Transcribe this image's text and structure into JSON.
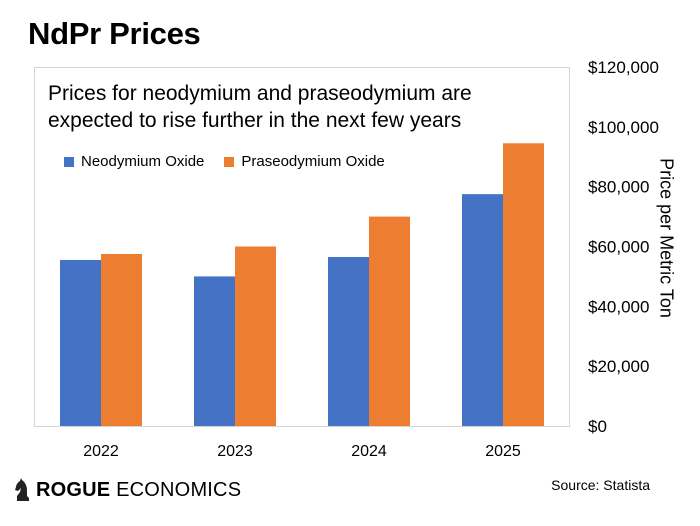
{
  "page": {
    "headline": "NdPr Prices",
    "source": "Source: Statista",
    "logo": {
      "bold": "ROGUE",
      "regular": " ECONOMICS",
      "icon": "knight-chess-icon"
    }
  },
  "chart_data": {
    "type": "bar",
    "title": "Prices for neodymium and praseodymium are expected to rise further in the next few years",
    "xlabel": "",
    "ylabel": "Price per Metric Ton",
    "categories": [
      "2022",
      "2023",
      "2024",
      "2025"
    ],
    "series": [
      {
        "name": "Neodymium Oxide",
        "color": "#4472c4",
        "values": [
          55500,
          50000,
          56500,
          77500
        ]
      },
      {
        "name": "Praseodymium Oxide",
        "color": "#ed7d31",
        "values": [
          57500,
          60000,
          70000,
          94500
        ]
      }
    ],
    "ylim": [
      0,
      120000
    ],
    "yticks": [
      "$0",
      "$20,000",
      "$40,000",
      "$60,000",
      "$80,000",
      "$100,000",
      "$120,000"
    ],
    "y_axis_side": "right",
    "legend_position": "top-left",
    "grid": false
  }
}
